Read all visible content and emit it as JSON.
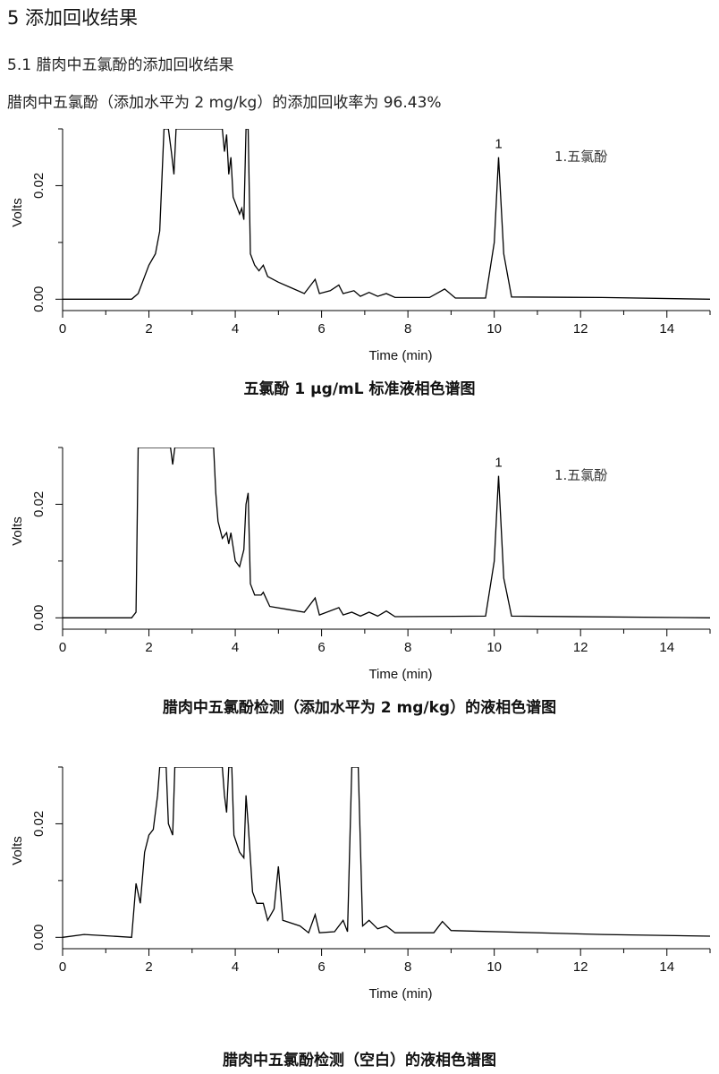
{
  "page": {
    "heading": "5 添加回收结果",
    "subheading": "5.1 腊肉中五氯酚的添加回收结果",
    "paragraph": "腊肉中五氯酚（添加水平为 2 mg/kg）的添加回收率为 96.43%"
  },
  "chart_data": [
    {
      "type": "line",
      "caption": "五氯酚 1 μg/mL 标准液相色谱图",
      "xlabel": "Time (min)",
      "ylabel": "Volts",
      "xlim": [
        0,
        15
      ],
      "ylim": [
        -0.002,
        0.03
      ],
      "x_ticks": [
        0,
        2,
        4,
        6,
        8,
        10,
        12,
        14
      ],
      "y_ticks": [
        0.0,
        0.02
      ],
      "y_tick_labels": [
        "0.00",
        "0.02"
      ],
      "peak_labels": [
        {
          "x": 10.1,
          "y": 0.025,
          "text": "1"
        }
      ],
      "legend": "1.五氯酚",
      "baseline": 0.0,
      "trace": [
        [
          0,
          0
        ],
        [
          1.6,
          0
        ],
        [
          1.75,
          0.001
        ],
        [
          1.85,
          0.003
        ],
        [
          2.0,
          0.006
        ],
        [
          2.15,
          0.008
        ],
        [
          2.25,
          0.012
        ],
        [
          2.35,
          0.03
        ],
        [
          2.45,
          0.03
        ],
        [
          2.52,
          0.026
        ],
        [
          2.58,
          0.022
        ],
        [
          2.63,
          0.03
        ],
        [
          3.7,
          0.03
        ],
        [
          3.75,
          0.026
        ],
        [
          3.8,
          0.029
        ],
        [
          3.85,
          0.022
        ],
        [
          3.9,
          0.025
        ],
        [
          3.95,
          0.018
        ],
        [
          4.05,
          0.016
        ],
        [
          4.1,
          0.015
        ],
        [
          4.15,
          0.016
        ],
        [
          4.2,
          0.014
        ],
        [
          4.25,
          0.03
        ],
        [
          4.3,
          0.03
        ],
        [
          4.35,
          0.008
        ],
        [
          4.45,
          0.006
        ],
        [
          4.55,
          0.005
        ],
        [
          4.65,
          0.006
        ],
        [
          4.75,
          0.004
        ],
        [
          5.0,
          0.003
        ],
        [
          5.3,
          0.002
        ],
        [
          5.6,
          0.001
        ],
        [
          5.85,
          0.0035
        ],
        [
          5.95,
          0.001
        ],
        [
          6.2,
          0.0015
        ],
        [
          6.4,
          0.0025
        ],
        [
          6.5,
          0.001
        ],
        [
          6.75,
          0.0015
        ],
        [
          6.9,
          0.0005
        ],
        [
          7.1,
          0.0012
        ],
        [
          7.3,
          0.0005
        ],
        [
          7.5,
          0.001
        ],
        [
          7.7,
          0.0003
        ],
        [
          8.5,
          0.0003
        ],
        [
          8.85,
          0.0018
        ],
        [
          9.1,
          0.0002
        ],
        [
          9.8,
          0.0002
        ],
        [
          10.0,
          0.01
        ],
        [
          10.1,
          0.025
        ],
        [
          10.22,
          0.008
        ],
        [
          10.4,
          0.0004
        ],
        [
          12.5,
          0.0003
        ],
        [
          15,
          0
        ]
      ]
    },
    {
      "type": "line",
      "caption": "腊肉中五氯酚检测（添加水平为 2 mg/kg）的液相色谱图",
      "xlabel": "Time (min)",
      "ylabel": "Volts",
      "xlim": [
        0,
        15
      ],
      "ylim": [
        -0.002,
        0.03
      ],
      "x_ticks": [
        0,
        2,
        4,
        6,
        8,
        10,
        12,
        14
      ],
      "y_ticks": [
        0.0,
        0.02
      ],
      "y_tick_labels": [
        "0.00",
        "0.02"
      ],
      "peak_labels": [
        {
          "x": 10.1,
          "y": 0.025,
          "text": "1"
        }
      ],
      "legend": "1.五氯酚",
      "baseline": 0.0,
      "trace": [
        [
          0,
          0
        ],
        [
          1.6,
          0
        ],
        [
          1.7,
          0.001
        ],
        [
          1.75,
          0.03
        ],
        [
          2.5,
          0.03
        ],
        [
          2.55,
          0.027
        ],
        [
          2.6,
          0.03
        ],
        [
          3.5,
          0.03
        ],
        [
          3.55,
          0.022
        ],
        [
          3.6,
          0.017
        ],
        [
          3.7,
          0.014
        ],
        [
          3.8,
          0.015
        ],
        [
          3.85,
          0.013
        ],
        [
          3.9,
          0.015
        ],
        [
          4.0,
          0.01
        ],
        [
          4.1,
          0.009
        ],
        [
          4.2,
          0.012
        ],
        [
          4.25,
          0.02
        ],
        [
          4.3,
          0.022
        ],
        [
          4.35,
          0.006
        ],
        [
          4.45,
          0.004
        ],
        [
          4.6,
          0.004
        ],
        [
          4.65,
          0.0045
        ],
        [
          4.8,
          0.002
        ],
        [
          5.2,
          0.0015
        ],
        [
          5.6,
          0.001
        ],
        [
          5.85,
          0.0035
        ],
        [
          5.95,
          0.0005
        ],
        [
          6.4,
          0.0018
        ],
        [
          6.5,
          0.0005
        ],
        [
          6.7,
          0.001
        ],
        [
          6.9,
          0.0003
        ],
        [
          7.1,
          0.001
        ],
        [
          7.3,
          0.0003
        ],
        [
          7.5,
          0.0012
        ],
        [
          7.7,
          0.0002
        ],
        [
          9.8,
          0.0003
        ],
        [
          10.0,
          0.01
        ],
        [
          10.1,
          0.025
        ],
        [
          10.22,
          0.007
        ],
        [
          10.4,
          0.0003
        ],
        [
          15,
          0
        ]
      ]
    },
    {
      "type": "line",
      "caption": "腊肉中五氯酚检测（空白）的液相色谱图",
      "xlabel": "Time (min)",
      "ylabel": "Volts",
      "xlim": [
        0,
        15
      ],
      "ylim": [
        -0.002,
        0.03
      ],
      "x_ticks": [
        0,
        2,
        4,
        6,
        8,
        10,
        12,
        14
      ],
      "y_ticks": [
        0.0,
        0.02
      ],
      "y_tick_labels": [
        "0.00",
        "0.02"
      ],
      "peak_labels": [],
      "legend": "",
      "baseline": 0.0,
      "trace": [
        [
          0,
          0
        ],
        [
          0.5,
          0.0005
        ],
        [
          1.6,
          0
        ],
        [
          1.7,
          0.0095
        ],
        [
          1.8,
          0.006
        ],
        [
          1.9,
          0.015
        ],
        [
          2.0,
          0.018
        ],
        [
          2.1,
          0.019
        ],
        [
          2.2,
          0.025
        ],
        [
          2.25,
          0.03
        ],
        [
          2.4,
          0.03
        ],
        [
          2.45,
          0.02
        ],
        [
          2.55,
          0.018
        ],
        [
          2.6,
          0.03
        ],
        [
          3.7,
          0.03
        ],
        [
          3.75,
          0.025
        ],
        [
          3.8,
          0.022
        ],
        [
          3.85,
          0.03
        ],
        [
          3.92,
          0.03
        ],
        [
          3.97,
          0.018
        ],
        [
          4.1,
          0.015
        ],
        [
          4.2,
          0.014
        ],
        [
          4.25,
          0.025
        ],
        [
          4.3,
          0.02
        ],
        [
          4.4,
          0.008
        ],
        [
          4.5,
          0.006
        ],
        [
          4.65,
          0.006
        ],
        [
          4.75,
          0.003
        ],
        [
          4.9,
          0.005
        ],
        [
          5.0,
          0.0125
        ],
        [
          5.1,
          0.003
        ],
        [
          5.5,
          0.002
        ],
        [
          5.7,
          0.0008
        ],
        [
          5.85,
          0.004
        ],
        [
          5.95,
          0.0008
        ],
        [
          6.3,
          0.001
        ],
        [
          6.5,
          0.003
        ],
        [
          6.6,
          0.001
        ],
        [
          6.7,
          0.03
        ],
        [
          6.85,
          0.03
        ],
        [
          6.95,
          0.002
        ],
        [
          7.1,
          0.003
        ],
        [
          7.3,
          0.0015
        ],
        [
          7.5,
          0.002
        ],
        [
          7.7,
          0.0008
        ],
        [
          8.6,
          0.0008
        ],
        [
          8.8,
          0.0028
        ],
        [
          9.0,
          0.0012
        ],
        [
          12.5,
          0.0005
        ],
        [
          15,
          0.0002
        ]
      ]
    }
  ]
}
